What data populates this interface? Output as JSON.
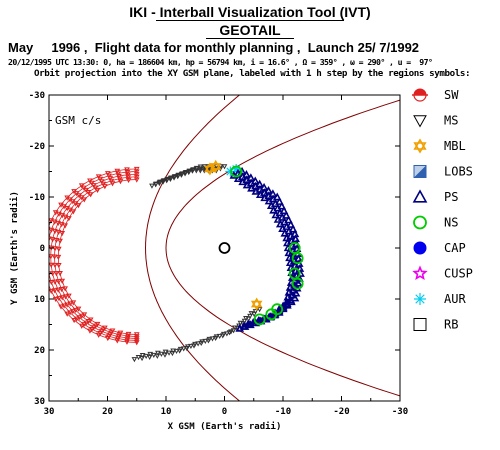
{
  "header": {
    "title": "IKI - Interball Visualization Tool (IVT)",
    "spacecraft": "GEOTAIL",
    "planning_line": "May     1996 ,  Flight data for monthly planning ,  Launch 25/ 7/1992",
    "orbit_params": "20/12/1995 UTC 13:30: 0, ha = 186604 km, hp = 56794 km, i = 16.6° , Ω = 359° , ω = 290° , u =  97°",
    "projection_note": "Orbit projection into the XY GSM plane, labeled with 1 h step by the regions symbols:"
  },
  "chart_data": {
    "type": "scatter",
    "panel_label": "GSM c/s",
    "xlabel": "X GSM (Earth's radii)",
    "ylabel": "Y GSM (Earth's radii)",
    "xlim": [
      30,
      -30
    ],
    "ylim": [
      -30,
      30
    ],
    "x_ticks": [
      "30",
      "20",
      "10",
      "0",
      "-10",
      "-20",
      "-30"
    ],
    "y_ticks": [
      "-30",
      "-20",
      "-10",
      "0",
      "10",
      "20",
      "30"
    ],
    "legend_placement": "right",
    "legend": [
      {
        "label": "SW",
        "symbol": "sun-half-disk",
        "color": "#e02020"
      },
      {
        "label": "MS",
        "symbol": "triangle-down-open",
        "color": "#000000"
      },
      {
        "label": "MBL",
        "symbol": "star-of-david",
        "color": "#f0a000"
      },
      {
        "label": "LOBS",
        "symbol": "square-diagonal-filled",
        "color": "#3060b0"
      },
      {
        "label": "PS",
        "symbol": "triangle-up-open",
        "color": "#000080"
      },
      {
        "label": "NS",
        "symbol": "circle-open",
        "color": "#00cc00"
      },
      {
        "label": "CAP",
        "symbol": "circle-filled",
        "color": "#0000ee"
      },
      {
        "label": "CUSP",
        "symbol": "star-open",
        "color": "#ee00ee"
      },
      {
        "label": "AUR",
        "symbol": "asterisk",
        "color": "#00ccee"
      },
      {
        "label": "RB",
        "symbol": "square-open",
        "color": "#000000"
      }
    ],
    "boundaries": [
      {
        "name": "magnetopause",
        "color": "#800000",
        "type": "parabola",
        "x_nose": 10,
        "y_flank": 14.5
      },
      {
        "name": "bow shock",
        "color": "#800000",
        "type": "parabola",
        "x_nose": 13.5,
        "y_flank": 27.5
      }
    ],
    "earth": {
      "x": 0,
      "y": 0
    },
    "series": [
      {
        "region": "SW",
        "color": "#e02020",
        "type": "loop",
        "center_x": 15,
        "half_width_x": 16,
        "y_range": [
          -15.5,
          18.5
        ],
        "count": 5
      },
      {
        "region": "MS",
        "color": "#333333",
        "type": "arc",
        "points": [
          [
            11,
            -13
          ],
          [
            4,
            -16
          ],
          [
            0,
            -16
          ]
        ]
      },
      {
        "region": "MS",
        "color": "#333333",
        "type": "arc",
        "points": [
          [
            14,
            21
          ],
          [
            8,
            20
          ],
          [
            3,
            18
          ],
          [
            -2,
            16
          ],
          [
            -6,
            12
          ]
        ]
      },
      {
        "region": "MBL",
        "color": "#f0a000",
        "points": [
          [
            2.5,
            -15.5
          ],
          [
            1.5,
            -16
          ],
          [
            -5.5,
            11
          ]
        ]
      },
      {
        "region": "AUR",
        "color": "#00ccee",
        "points": [
          [
            -1,
            -15
          ],
          [
            -2,
            -15.5
          ],
          [
            -2.5,
            -15
          ]
        ]
      },
      {
        "region": "PS",
        "color": "#000080",
        "type": "arc",
        "points": [
          [
            -3,
            -15
          ],
          [
            -9,
            -10
          ],
          [
            -12,
            -3
          ],
          [
            -13,
            5
          ],
          [
            -12,
            10
          ],
          [
            -9,
            13
          ],
          [
            -4,
            15
          ]
        ]
      },
      {
        "region": "NS",
        "color": "#00cc00",
        "points": [
          [
            -2,
            -15
          ],
          [
            -12,
            0
          ],
          [
            -12.5,
            2
          ],
          [
            -12,
            5
          ],
          [
            -12.5,
            7
          ],
          [
            -9,
            12
          ],
          [
            -8,
            13
          ],
          [
            -6,
            14
          ]
        ]
      }
    ]
  }
}
